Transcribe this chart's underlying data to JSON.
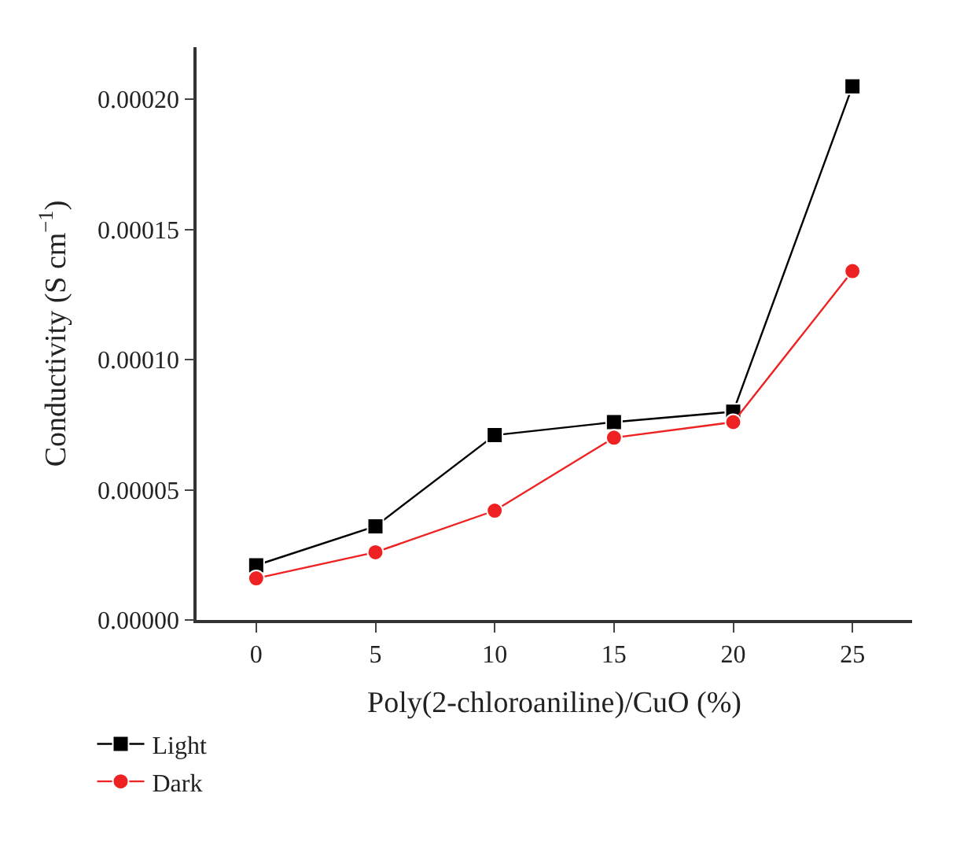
{
  "chart_data": {
    "type": "line",
    "xlabel": "Poly(2-chloroaniline)/CuO (%)",
    "ylabel": "Conductivity (S cm$^{−1}$)",
    "x": [
      0,
      5,
      10,
      15,
      20,
      25
    ],
    "series": [
      {
        "name": "Light",
        "color": "#000000",
        "marker": "square",
        "values": [
          2.1e-05,
          3.6e-05,
          7.1e-05,
          7.6e-05,
          8e-05,
          0.000205
        ]
      },
      {
        "name": "Dark",
        "color": "#ee2222",
        "marker": "circle",
        "values": [
          1.6e-05,
          2.6e-05,
          4.2e-05,
          7e-05,
          7.6e-05,
          0.000134
        ]
      }
    ],
    "xlim": [
      -2.5,
      27.5
    ],
    "xticks": [
      0,
      5,
      10,
      15,
      20,
      25
    ],
    "ylim": [
      0,
      0.00022
    ],
    "yticks": [
      {
        "value": 0,
        "label": "0.00000"
      },
      {
        "value": 5e-05,
        "label": "0.00005"
      },
      {
        "value": 0.0001,
        "label": "0.00010"
      },
      {
        "value": 0.00015,
        "label": "0.00015"
      },
      {
        "value": 0.0002,
        "label": "0.00020"
      }
    ],
    "legend": "bottom left",
    "line_style": "solid"
  }
}
